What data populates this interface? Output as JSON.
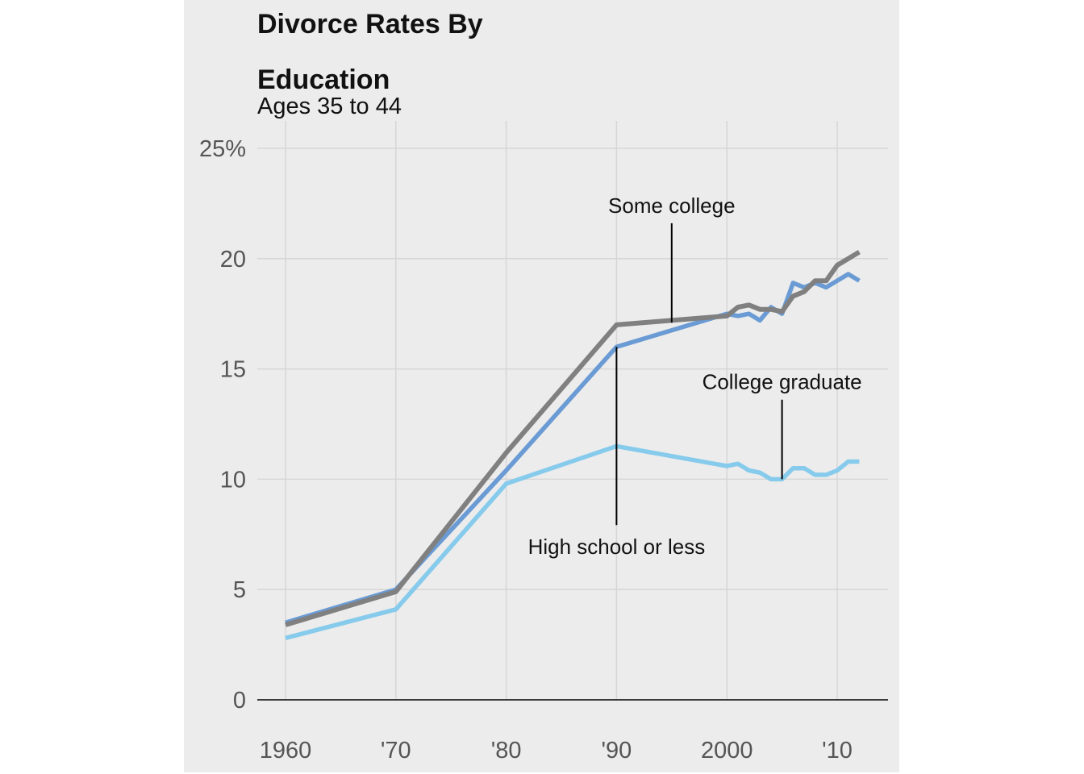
{
  "colors": {
    "background": "#ececec",
    "grid": "#d6d6d6",
    "axis": "#000000",
    "tick_text": "#555555",
    "annotation_text": "#111111"
  },
  "chart_data": {
    "type": "line",
    "title_lines": [
      "Divorce Rates By",
      "Education"
    ],
    "subtitle": "Ages 35 to 44",
    "xlabel": "",
    "ylabel": "",
    "xlim": [
      1957.5,
      2014.5
    ],
    "ylim": [
      0,
      25
    ],
    "x_ticks": [
      {
        "value": 1960,
        "label": "1960"
      },
      {
        "value": 1970,
        "label": "'70"
      },
      {
        "value": 1980,
        "label": "'80"
      },
      {
        "value": 1990,
        "label": "'90"
      },
      {
        "value": 2000,
        "label": "2000"
      },
      {
        "value": 2010,
        "label": "'10"
      }
    ],
    "y_ticks": [
      {
        "value": 0,
        "label": "0"
      },
      {
        "value": 5,
        "label": "5"
      },
      {
        "value": 10,
        "label": "10"
      },
      {
        "value": 15,
        "label": "15"
      },
      {
        "value": 20,
        "label": "20"
      },
      {
        "value": 25,
        "label": "25%"
      }
    ],
    "grid": true,
    "legend": "none",
    "series": [
      {
        "name": "High school or less",
        "color": "#6a9bd4",
        "x": [
          1960,
          1970,
          1980,
          1990,
          2000,
          2001,
          2002,
          2003,
          2004,
          2005,
          2006,
          2007,
          2008,
          2009,
          2010,
          2011,
          2012
        ],
        "y": [
          3.5,
          5.0,
          10.4,
          16.0,
          17.5,
          17.4,
          17.5,
          17.2,
          17.8,
          17.5,
          18.9,
          18.7,
          18.9,
          18.7,
          19.0,
          19.3,
          19.0
        ]
      },
      {
        "name": "College graduate",
        "color": "#87cbec",
        "x": [
          1960,
          1970,
          1980,
          1990,
          2000,
          2001,
          2002,
          2003,
          2004,
          2005,
          2006,
          2007,
          2008,
          2009,
          2010,
          2011,
          2012
        ],
        "y": [
          2.8,
          4.1,
          9.8,
          11.5,
          10.6,
          10.7,
          10.4,
          10.3,
          10.0,
          10.0,
          10.5,
          10.5,
          10.2,
          10.2,
          10.4,
          10.8,
          10.8
        ]
      },
      {
        "name": "Some college",
        "color": "#808080",
        "x": [
          1960,
          1970,
          1980,
          1990,
          2000,
          2001,
          2002,
          2003,
          2004,
          2005,
          2006,
          2007,
          2008,
          2009,
          2010,
          2011,
          2012
        ],
        "y": [
          3.4,
          4.9,
          11.2,
          17.0,
          17.4,
          17.8,
          17.9,
          17.7,
          17.7,
          17.6,
          18.3,
          18.5,
          19.0,
          19.0,
          19.7,
          20.0,
          20.3
        ]
      }
    ],
    "annotations": [
      {
        "text": "Some college",
        "x": 1995,
        "y": 17.1,
        "label_y": 21.9
      },
      {
        "text": "College graduate",
        "x": 2005,
        "y": 10.0,
        "label_y": 13.9
      },
      {
        "text": "High school or less",
        "x": 1990,
        "y": 16.0,
        "label_y": 6.9
      }
    ]
  }
}
